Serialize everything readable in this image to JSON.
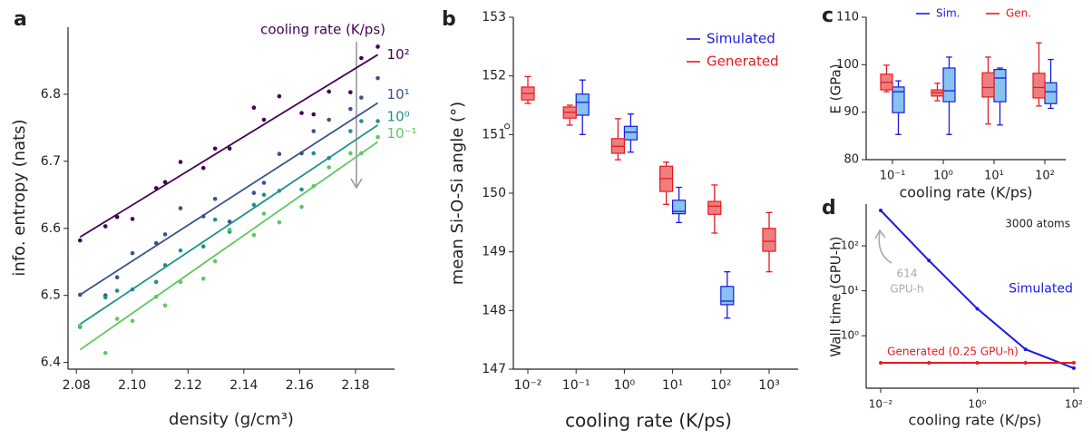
{
  "chart_data": [
    {
      "type": "scatter",
      "panel_label": "a",
      "xlabel": "density (g/cm³)",
      "ylabel": "info. entropy (nats)",
      "legend_title": "cooling rate (K/ps)",
      "xlim": [
        2.077,
        2.194
      ],
      "ylim": [
        6.39,
        6.9
      ],
      "xticks": [
        2.08,
        {
          "value": 2.1,
          "label": "2.10"
        },
        2.12,
        2.14,
        2.16,
        2.18
      ],
      "yticks": [
        6.4,
        6.5,
        6.6,
        6.7,
        6.8
      ],
      "series": [
        {
          "name": "10²",
          "color": "#440154",
          "x": [
            2.0813,
            2.0904,
            2.0946,
            2.1001,
            2.1086,
            2.1118,
            2.1173,
            2.1255,
            2.1297,
            2.1349,
            2.1436,
            2.1472,
            2.1527,
            2.1607,
            2.165,
            2.1705,
            2.1782,
            2.1821,
            2.188
          ],
          "values": [
            6.582,
            6.603,
            6.617,
            6.614,
            6.66,
            6.669,
            6.699,
            6.69,
            6.719,
            6.719,
            6.78,
            6.762,
            6.797,
            6.772,
            6.77,
            6.804,
            6.803,
            6.854,
            6.871
          ],
          "fit_x": [
            2.0813,
            2.188
          ],
          "fit_values": [
            6.587,
            6.859
          ]
        },
        {
          "name": "10¹",
          "color": "#3b528b",
          "x": [
            2.0813,
            2.0904,
            2.0946,
            2.1001,
            2.1086,
            2.1118,
            2.1173,
            2.1255,
            2.1297,
            2.1349,
            2.1436,
            2.1472,
            2.1527,
            2.1607,
            2.165,
            2.1705,
            2.1782,
            2.1821,
            2.188
          ],
          "values": [
            6.501,
            6.5,
            6.527,
            6.563,
            6.578,
            6.591,
            6.63,
            6.618,
            6.644,
            6.61,
            6.653,
            6.668,
            6.711,
            6.712,
            6.745,
            6.762,
            6.778,
            6.795,
            6.824
          ],
          "fit_x": [
            2.0813,
            2.188
          ],
          "fit_values": [
            6.501,
            6.787
          ]
        },
        {
          "name": "10⁰",
          "color": "#21918c",
          "x": [
            2.0813,
            2.0904,
            2.0946,
            2.1001,
            2.1086,
            2.1118,
            2.1173,
            2.1255,
            2.1297,
            2.1349,
            2.1436,
            2.1472,
            2.1527,
            2.1607,
            2.165,
            2.1705,
            2.1782,
            2.1821,
            2.188
          ],
          "values": [
            6.453,
            6.497,
            6.507,
            6.509,
            6.52,
            6.545,
            6.567,
            6.573,
            6.613,
            6.595,
            6.635,
            6.65,
            6.656,
            6.658,
            6.712,
            6.705,
            6.745,
            6.76,
            6.76
          ],
          "fit_x": [
            2.0813,
            2.188
          ],
          "fit_values": [
            6.457,
            6.754
          ]
        },
        {
          "name": "10⁻¹",
          "color": "#5ec962",
          "x": [
            2.0813,
            2.0904,
            2.0946,
            2.1001,
            2.1086,
            2.1118,
            2.1173,
            2.1255,
            2.1297,
            2.1349,
            2.1436,
            2.1472,
            2.1527,
            2.1607,
            2.165,
            2.1705,
            2.1782,
            2.1821,
            2.188
          ],
          "values": [
            6.455,
            6.414,
            6.465,
            6.462,
            6.498,
            6.485,
            6.52,
            6.525,
            6.551,
            6.598,
            6.59,
            6.622,
            6.609,
            6.632,
            6.663,
            6.691,
            6.712,
            6.712,
            6.736
          ],
          "fit_x": [
            2.0813,
            2.188
          ],
          "fit_values": [
            6.419,
            6.729
          ]
        }
      ]
    },
    {
      "type": "box",
      "panel_label": "b",
      "xlabel": "cooling rate (K/ps)",
      "ylabel": "mean Si-O-Si angle (°)",
      "legend": "upper right",
      "categories": [
        "10⁻²",
        "10⁻¹",
        "10⁰",
        "10¹",
        "10²",
        "10³"
      ],
      "ylim": [
        147,
        153
      ],
      "yticks": [
        147,
        148,
        149,
        150,
        151,
        152,
        153
      ],
      "series": [
        {
          "name": "Simulated",
          "color": "#1a1ae0",
          "fill": "#86c3ee",
          "whislo": [
            null,
            151.0,
            150.7,
            149.5,
            147.87,
            null
          ],
          "q1": [
            null,
            151.33,
            150.91,
            149.65,
            148.1,
            null
          ],
          "med": [
            null,
            151.55,
            151.04,
            149.69,
            148.16,
            null
          ],
          "q3": [
            null,
            151.69,
            151.14,
            149.88,
            148.41,
            null
          ],
          "whishi": [
            null,
            151.93,
            151.35,
            150.1,
            148.66,
            null
          ]
        },
        {
          "name": "Generated",
          "color": "#e8191f",
          "fill": "#ee7f7f",
          "whislo": [
            151.53,
            151.16,
            150.57,
            149.81,
            149.32,
            148.66
          ],
          "q1": [
            151.59,
            151.28,
            150.68,
            150.03,
            149.64,
            149.01
          ],
          "med": [
            151.7,
            151.38,
            150.8,
            150.25,
            149.78,
            149.18
          ],
          "q3": [
            151.81,
            151.47,
            150.93,
            150.46,
            149.86,
            149.4
          ],
          "whishi": [
            151.99,
            151.5,
            151.27,
            150.53,
            150.14,
            149.67
          ],
          "fliers": [
            [
              151.14
            ],
            [],
            [],
            [],
            [],
            []
          ]
        }
      ]
    },
    {
      "type": "box",
      "panel_label": "c",
      "xlabel": "cooling rate (K/ps)",
      "ylabel": "E (GPa)",
      "legend": "upper center",
      "categories": [
        "10⁻¹",
        "10⁰",
        "10¹",
        "10²"
      ],
      "ylim": [
        80,
        110
      ],
      "yticks": [
        80,
        90,
        100,
        110
      ],
      "series": [
        {
          "name": "Sim.",
          "color": "#1a1ae0",
          "fill": "#86c3ee",
          "whislo": [
            85.3,
            85.3,
            87.3,
            90.8
          ],
          "q1": [
            89.9,
            92.2,
            92.2,
            91.8
          ],
          "med": [
            94.3,
            94.5,
            97.2,
            94.3
          ],
          "q3": [
            95.3,
            99.3,
            99.0,
            96.2
          ],
          "whishi": [
            96.6,
            101.6,
            99.3,
            101.1
          ]
        },
        {
          "name": "Gen.",
          "color": "#e8191f",
          "fill": "#ee7f7f",
          "whislo": [
            94.3,
            92.4,
            87.5,
            91.3
          ],
          "q1": [
            94.7,
            93.4,
            93.2,
            93.0
          ],
          "med": [
            96.3,
            94.1,
            95.2,
            95.2
          ],
          "q3": [
            98.0,
            94.7,
            98.3,
            98.2
          ],
          "whishi": [
            99.9,
            96.1,
            101.6,
            104.6
          ]
        }
      ]
    },
    {
      "type": "line",
      "panel_label": "d",
      "xlabel": "cooling rate (K/ps)",
      "ylabel": "Wall time (GPU-h)",
      "note": "3000 atoms",
      "annotation": [
        "614",
        "GPU-h"
      ],
      "xscale": "log",
      "yscale": "log",
      "xlim": [
        0.005,
        130
      ],
      "ylim": [
        0.068,
        850
      ],
      "xticks": [
        {
          "value": 0.01,
          "label": "10⁻²"
        },
        {
          "value": 1,
          "label": "10⁰"
        },
        {
          "value": 100,
          "label": "10²"
        }
      ],
      "yticks": [
        {
          "value": 1,
          "label": "10⁰"
        },
        {
          "value": 10,
          "label": "10¹"
        },
        {
          "value": 100,
          "label": "10²"
        }
      ],
      "x": [
        0.01,
        0.1,
        1,
        10,
        100
      ],
      "series": [
        {
          "name": "Simulated",
          "color": "#1a1ae0",
          "values": [
            614,
            47,
            4.0,
            0.5,
            0.19
          ]
        },
        {
          "name": "Generated (0.25 GPU-h)",
          "color": "#e8191f",
          "values": [
            0.25,
            0.25,
            0.25,
            0.25,
            0.25
          ]
        }
      ]
    }
  ]
}
